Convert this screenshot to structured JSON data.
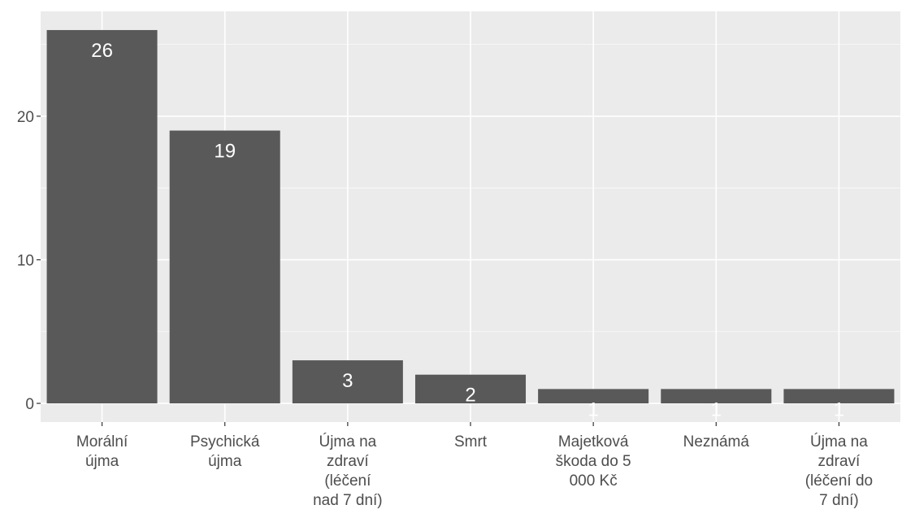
{
  "chart_data": {
    "type": "bar",
    "title": "",
    "xlabel": "",
    "ylabel": "",
    "categories": [
      "Morální újma",
      "Psychická újma",
      "Újma na zdraví (léčení nad 7 dní)",
      "Smrt",
      "Majetková škoda do 5 000 Kč",
      "Neznámá",
      "Újma na zdraví (léčení do 7 dní)"
    ],
    "category_label_lines": [
      [
        "Morální",
        "újma"
      ],
      [
        "Psychická",
        "újma"
      ],
      [
        "Újma na",
        "zdraví",
        "(léčení",
        "nad 7 dní)"
      ],
      [
        "Smrt"
      ],
      [
        "Majetková",
        "škoda do 5",
        "000 Kč"
      ],
      [
        "Neznámá"
      ],
      [
        "Újma na",
        "zdraví",
        "(léčení do",
        "7 dní)"
      ]
    ],
    "values": [
      26,
      19,
      3,
      2,
      1,
      1,
      1
    ],
    "data_labels": [
      "26",
      "19",
      "3",
      "2",
      "1",
      "1",
      "1"
    ],
    "ylim": [
      -1.3,
      27.3
    ],
    "yticks": [
      0,
      10,
      20
    ],
    "ytick_labels": [
      "0",
      "10",
      "20"
    ],
    "grid": true,
    "colors": {
      "panel_background": "#ebebeb",
      "grid_major": "#ffffff",
      "bar_fill": "#595959",
      "label_text": "#ffffff",
      "axis_text": "#4d4d4d"
    }
  }
}
